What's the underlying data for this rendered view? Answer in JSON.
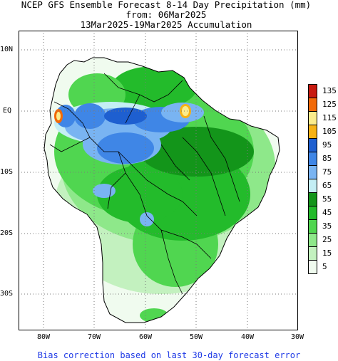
{
  "title": {
    "line1": "NCEP GFS Ensemble Forecast 8-14 Day Precipitation (mm)",
    "line2": "from: 06Mar2025",
    "line3": "13Mar2025-19Mar2025 Accumulation"
  },
  "axes": {
    "y_labels": [
      "10N",
      "EQ",
      "10S",
      "20S",
      "30S"
    ],
    "x_labels": [
      "80W",
      "70W",
      "60W",
      "50W",
      "40W",
      "30W"
    ],
    "lon_range": [
      -85,
      -30
    ],
    "lat_range": [
      13,
      -36
    ]
  },
  "legend": {
    "levels": [
      {
        "label": "135",
        "color": "#c81a10"
      },
      {
        "label": "125",
        "color": "#f26a08"
      },
      {
        "label": "115",
        "color": "#fbec8c"
      },
      {
        "label": "105",
        "color": "#f7b214"
      },
      {
        "label": "95",
        "color": "#1e5fd0"
      },
      {
        "label": "85",
        "color": "#3f86e6"
      },
      {
        "label": "75",
        "color": "#79b4f2"
      },
      {
        "label": "65",
        "color": "#c4eef4"
      },
      {
        "label": "55",
        "color": "#13951a"
      },
      {
        "label": "45",
        "color": "#23bb2b"
      },
      {
        "label": "35",
        "color": "#50d650"
      },
      {
        "label": "25",
        "color": "#8ee88a"
      },
      {
        "label": "15",
        "color": "#c3f1bf"
      },
      {
        "label": "5",
        "color": "#f0fbef"
      }
    ]
  },
  "footer": "Bias correction based on last 30-day forecast error"
}
